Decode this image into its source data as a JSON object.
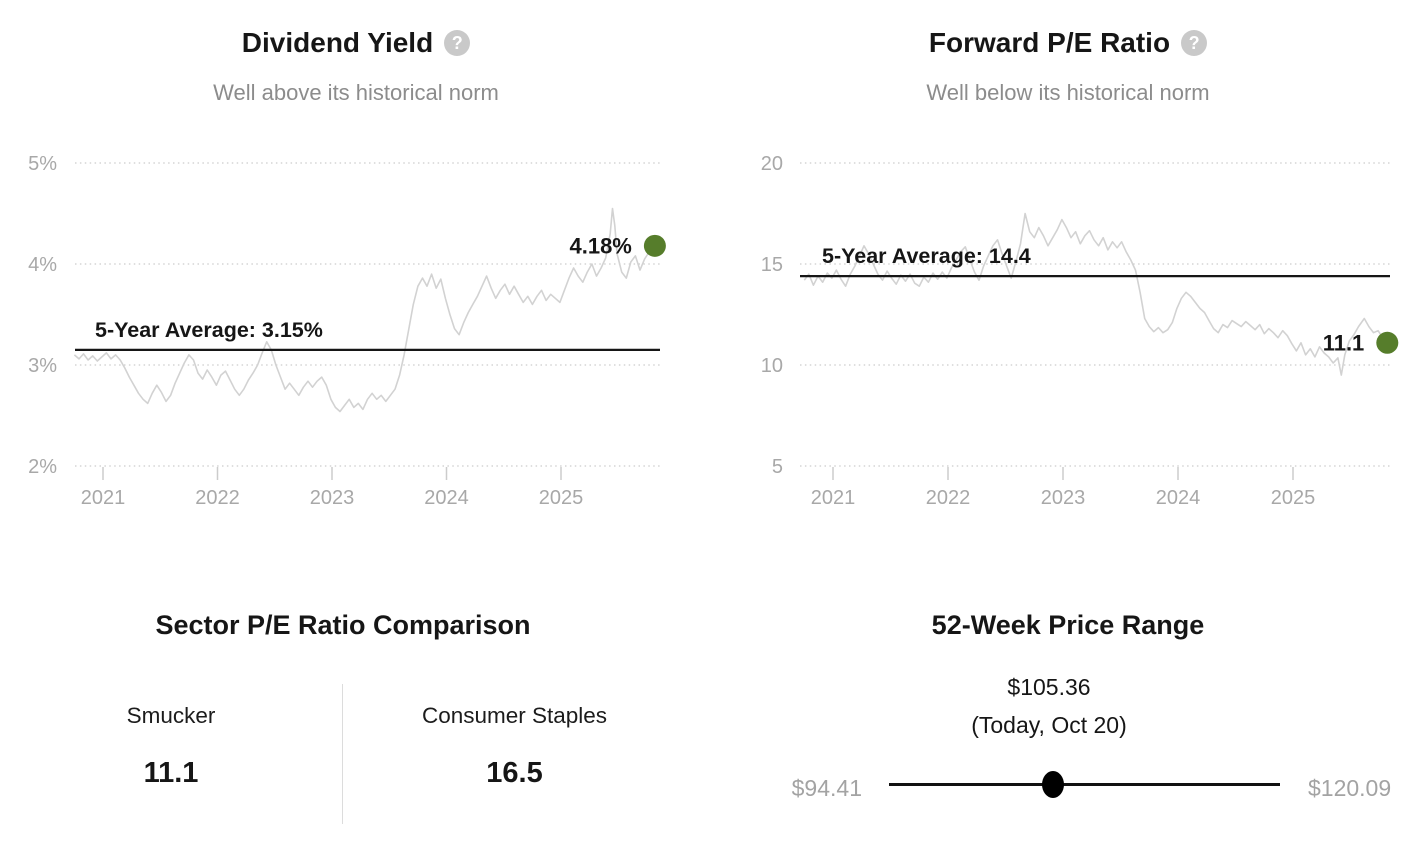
{
  "charts_meta": {
    "dividend": {
      "title": "Dividend Yield",
      "subtitle": "Well above its historical norm",
      "help_icon": "?"
    },
    "forward_pe": {
      "title": "Forward P/E Ratio",
      "subtitle": "Well below its historical norm",
      "help_icon": "?"
    }
  },
  "chart_data": [
    {
      "type": "line",
      "svg": "dividend-yield-chart",
      "title": "Dividend Yield",
      "subtitle": "Well above its historical norm",
      "grid": "dotted-horizontal",
      "ylim": [
        2,
        5
      ],
      "y_ticks": [
        {
          "label": "5%",
          "value": 5
        },
        {
          "label": "4%",
          "value": 4
        },
        {
          "label": "3%",
          "value": 3
        },
        {
          "label": "2%",
          "value": 2
        }
      ],
      "x_ticks": [
        2021,
        2022,
        2023,
        2024,
        2025
      ],
      "average": {
        "label": "5-Year Average: 3.15%",
        "value": 3.15
      },
      "end_label": "4.18%",
      "end_value": 4.18,
      "dot_color": "#567d2b",
      "line_color": "#d2d2d2",
      "series": [
        [
          2020.75,
          3.1
        ],
        [
          2020.79,
          3.06
        ],
        [
          2020.83,
          3.11
        ],
        [
          2020.87,
          3.05
        ],
        [
          2020.91,
          3.09
        ],
        [
          2020.95,
          3.04
        ],
        [
          2020.99,
          3.08
        ],
        [
          2021.03,
          3.12
        ],
        [
          2021.07,
          3.06
        ],
        [
          2021.11,
          3.1
        ],
        [
          2021.15,
          3.05
        ],
        [
          2021.19,
          2.97
        ],
        [
          2021.23,
          2.88
        ],
        [
          2021.27,
          2.8
        ],
        [
          2021.31,
          2.72
        ],
        [
          2021.35,
          2.66
        ],
        [
          2021.39,
          2.62
        ],
        [
          2021.43,
          2.72
        ],
        [
          2021.47,
          2.8
        ],
        [
          2021.51,
          2.73
        ],
        [
          2021.55,
          2.64
        ],
        [
          2021.59,
          2.7
        ],
        [
          2021.63,
          2.82
        ],
        [
          2021.67,
          2.92
        ],
        [
          2021.71,
          3.02
        ],
        [
          2021.75,
          3.1
        ],
        [
          2021.79,
          3.05
        ],
        [
          2021.83,
          2.92
        ],
        [
          2021.87,
          2.86
        ],
        [
          2021.91,
          2.95
        ],
        [
          2021.95,
          2.88
        ],
        [
          2021.99,
          2.8
        ],
        [
          2022.03,
          2.9
        ],
        [
          2022.07,
          2.94
        ],
        [
          2022.11,
          2.85
        ],
        [
          2022.15,
          2.76
        ],
        [
          2022.19,
          2.7
        ],
        [
          2022.23,
          2.76
        ],
        [
          2022.27,
          2.85
        ],
        [
          2022.31,
          2.92
        ],
        [
          2022.35,
          3.0
        ],
        [
          2022.39,
          3.12
        ],
        [
          2022.43,
          3.23
        ],
        [
          2022.47,
          3.15
        ],
        [
          2022.51,
          3.0
        ],
        [
          2022.55,
          2.88
        ],
        [
          2022.59,
          2.76
        ],
        [
          2022.63,
          2.82
        ],
        [
          2022.67,
          2.76
        ],
        [
          2022.71,
          2.7
        ],
        [
          2022.75,
          2.78
        ],
        [
          2022.79,
          2.84
        ],
        [
          2022.83,
          2.78
        ],
        [
          2022.87,
          2.84
        ],
        [
          2022.91,
          2.88
        ],
        [
          2022.95,
          2.8
        ],
        [
          2022.99,
          2.66
        ],
        [
          2023.03,
          2.58
        ],
        [
          2023.07,
          2.54
        ],
        [
          2023.11,
          2.6
        ],
        [
          2023.15,
          2.66
        ],
        [
          2023.19,
          2.58
        ],
        [
          2023.23,
          2.62
        ],
        [
          2023.27,
          2.56
        ],
        [
          2023.31,
          2.66
        ],
        [
          2023.35,
          2.72
        ],
        [
          2023.39,
          2.66
        ],
        [
          2023.43,
          2.7
        ],
        [
          2023.47,
          2.64
        ],
        [
          2023.51,
          2.7
        ],
        [
          2023.55,
          2.76
        ],
        [
          2023.59,
          2.9
        ],
        [
          2023.63,
          3.1
        ],
        [
          2023.67,
          3.35
        ],
        [
          2023.71,
          3.6
        ],
        [
          2023.75,
          3.78
        ],
        [
          2023.79,
          3.86
        ],
        [
          2023.83,
          3.78
        ],
        [
          2023.87,
          3.9
        ],
        [
          2023.91,
          3.76
        ],
        [
          2023.95,
          3.85
        ],
        [
          2023.99,
          3.66
        ],
        [
          2024.03,
          3.5
        ],
        [
          2024.07,
          3.36
        ],
        [
          2024.11,
          3.3
        ],
        [
          2024.15,
          3.42
        ],
        [
          2024.19,
          3.52
        ],
        [
          2024.23,
          3.6
        ],
        [
          2024.27,
          3.68
        ],
        [
          2024.31,
          3.78
        ],
        [
          2024.35,
          3.88
        ],
        [
          2024.39,
          3.76
        ],
        [
          2024.43,
          3.66
        ],
        [
          2024.47,
          3.74
        ],
        [
          2024.51,
          3.8
        ],
        [
          2024.55,
          3.7
        ],
        [
          2024.59,
          3.78
        ],
        [
          2024.63,
          3.7
        ],
        [
          2024.67,
          3.62
        ],
        [
          2024.71,
          3.68
        ],
        [
          2024.75,
          3.6
        ],
        [
          2024.79,
          3.68
        ],
        [
          2024.83,
          3.74
        ],
        [
          2024.87,
          3.64
        ],
        [
          2024.91,
          3.7
        ],
        [
          2024.95,
          3.66
        ],
        [
          2024.99,
          3.62
        ],
        [
          2025.03,
          3.74
        ],
        [
          2025.07,
          3.86
        ],
        [
          2025.11,
          3.96
        ],
        [
          2025.15,
          3.88
        ],
        [
          2025.19,
          3.82
        ],
        [
          2025.23,
          3.92
        ],
        [
          2025.27,
          4.0
        ],
        [
          2025.31,
          3.88
        ],
        [
          2025.35,
          3.96
        ],
        [
          2025.39,
          4.06
        ],
        [
          2025.43,
          4.3
        ],
        [
          2025.45,
          4.55
        ],
        [
          2025.47,
          4.38
        ],
        [
          2025.49,
          4.1
        ],
        [
          2025.53,
          3.92
        ],
        [
          2025.57,
          3.86
        ],
        [
          2025.61,
          4.02
        ],
        [
          2025.65,
          4.08
        ],
        [
          2025.69,
          3.94
        ],
        [
          2025.73,
          4.05
        ],
        [
          2025.77,
          4.12
        ],
        [
          2025.82,
          4.18
        ]
      ]
    },
    {
      "type": "line",
      "svg": "forward-pe-chart",
      "title": "Forward P/E Ratio",
      "subtitle": "Well below its historical norm",
      "grid": "dotted-horizontal",
      "ylim": [
        5,
        20
      ],
      "y_ticks": [
        {
          "label": "20",
          "value": 20
        },
        {
          "label": "15",
          "value": 15
        },
        {
          "label": "10",
          "value": 10
        },
        {
          "label": "5",
          "value": 5
        }
      ],
      "x_ticks": [
        2021,
        2022,
        2023,
        2024,
        2025
      ],
      "average": {
        "label": "5-Year Average: 14.4",
        "value": 14.4
      },
      "end_label": "11.1",
      "end_value": 11.1,
      "dot_color": "#567d2b",
      "line_color": "#d2d2d2",
      "series": [
        [
          2020.75,
          14.2
        ],
        [
          2020.79,
          14.5
        ],
        [
          2020.83,
          13.95
        ],
        [
          2020.87,
          14.4
        ],
        [
          2020.91,
          14.1
        ],
        [
          2020.95,
          14.55
        ],
        [
          2020.99,
          14.3
        ],
        [
          2021.03,
          14.7
        ],
        [
          2021.07,
          14.25
        ],
        [
          2021.11,
          13.9
        ],
        [
          2021.15,
          14.5
        ],
        [
          2021.19,
          14.9
        ],
        [
          2021.23,
          15.4
        ],
        [
          2021.27,
          15.9
        ],
        [
          2021.31,
          15.5
        ],
        [
          2021.35,
          15.0
        ],
        [
          2021.39,
          14.5
        ],
        [
          2021.43,
          14.2
        ],
        [
          2021.47,
          14.65
        ],
        [
          2021.51,
          14.3
        ],
        [
          2021.55,
          14.0
        ],
        [
          2021.59,
          14.45
        ],
        [
          2021.63,
          14.15
        ],
        [
          2021.67,
          14.5
        ],
        [
          2021.71,
          14.05
        ],
        [
          2021.75,
          13.9
        ],
        [
          2021.79,
          14.35
        ],
        [
          2021.83,
          14.1
        ],
        [
          2021.87,
          14.55
        ],
        [
          2021.91,
          14.25
        ],
        [
          2021.95,
          14.6
        ],
        [
          2021.99,
          14.3
        ],
        [
          2022.03,
          14.8
        ],
        [
          2022.07,
          15.2
        ],
        [
          2022.11,
          15.6
        ],
        [
          2022.15,
          15.85
        ],
        [
          2022.19,
          15.2
        ],
        [
          2022.23,
          14.6
        ],
        [
          2022.27,
          14.2
        ],
        [
          2022.31,
          14.9
        ],
        [
          2022.35,
          15.4
        ],
        [
          2022.39,
          15.9
        ],
        [
          2022.43,
          16.2
        ],
        [
          2022.47,
          15.5
        ],
        [
          2022.51,
          14.9
        ],
        [
          2022.55,
          14.3
        ],
        [
          2022.59,
          15.1
        ],
        [
          2022.63,
          16.0
        ],
        [
          2022.67,
          17.5
        ],
        [
          2022.71,
          16.6
        ],
        [
          2022.75,
          16.3
        ],
        [
          2022.79,
          16.8
        ],
        [
          2022.83,
          16.4
        ],
        [
          2022.87,
          15.9
        ],
        [
          2022.91,
          16.3
        ],
        [
          2022.95,
          16.7
        ],
        [
          2022.99,
          17.2
        ],
        [
          2023.03,
          16.8
        ],
        [
          2023.07,
          16.3
        ],
        [
          2023.11,
          16.6
        ],
        [
          2023.15,
          16.0
        ],
        [
          2023.19,
          16.4
        ],
        [
          2023.23,
          16.65
        ],
        [
          2023.27,
          16.2
        ],
        [
          2023.31,
          15.9
        ],
        [
          2023.35,
          16.3
        ],
        [
          2023.39,
          15.7
        ],
        [
          2023.43,
          16.1
        ],
        [
          2023.47,
          15.8
        ],
        [
          2023.51,
          16.1
        ],
        [
          2023.55,
          15.6
        ],
        [
          2023.59,
          15.2
        ],
        [
          2023.63,
          14.7
        ],
        [
          2023.67,
          13.6
        ],
        [
          2023.71,
          12.3
        ],
        [
          2023.75,
          11.9
        ],
        [
          2023.79,
          11.65
        ],
        [
          2023.83,
          11.85
        ],
        [
          2023.87,
          11.6
        ],
        [
          2023.91,
          11.75
        ],
        [
          2023.95,
          12.1
        ],
        [
          2023.99,
          12.8
        ],
        [
          2024.03,
          13.3
        ],
        [
          2024.07,
          13.6
        ],
        [
          2024.11,
          13.4
        ],
        [
          2024.15,
          13.1
        ],
        [
          2024.19,
          12.8
        ],
        [
          2024.23,
          12.6
        ],
        [
          2024.27,
          12.2
        ],
        [
          2024.31,
          11.8
        ],
        [
          2024.35,
          11.6
        ],
        [
          2024.39,
          12.0
        ],
        [
          2024.43,
          11.85
        ],
        [
          2024.47,
          12.2
        ],
        [
          2024.51,
          12.05
        ],
        [
          2024.55,
          11.9
        ],
        [
          2024.59,
          12.15
        ],
        [
          2024.63,
          11.95
        ],
        [
          2024.67,
          11.75
        ],
        [
          2024.71,
          12.0
        ],
        [
          2024.75,
          11.55
        ],
        [
          2024.79,
          11.8
        ],
        [
          2024.83,
          11.6
        ],
        [
          2024.87,
          11.35
        ],
        [
          2024.91,
          11.7
        ],
        [
          2024.95,
          11.45
        ],
        [
          2024.99,
          11.05
        ],
        [
          2025.03,
          10.7
        ],
        [
          2025.07,
          11.1
        ],
        [
          2025.11,
          10.5
        ],
        [
          2025.15,
          10.8
        ],
        [
          2025.19,
          10.4
        ],
        [
          2025.23,
          10.9
        ],
        [
          2025.27,
          10.6
        ],
        [
          2025.31,
          10.4
        ],
        [
          2025.35,
          10.1
        ],
        [
          2025.39,
          10.35
        ],
        [
          2025.42,
          9.5
        ],
        [
          2025.45,
          10.5
        ],
        [
          2025.49,
          11.2
        ],
        [
          2025.53,
          11.5
        ],
        [
          2025.57,
          11.9
        ],
        [
          2025.62,
          12.3
        ],
        [
          2025.66,
          11.9
        ],
        [
          2025.7,
          11.6
        ],
        [
          2025.74,
          11.7
        ],
        [
          2025.78,
          11.35
        ],
        [
          2025.82,
          11.1
        ]
      ]
    }
  ],
  "sector_comparison": {
    "title": "Sector P/E Ratio Comparison",
    "items": [
      {
        "label": "Smucker",
        "value": "11.1"
      },
      {
        "label": "Consumer Staples",
        "value": "16.5"
      }
    ]
  },
  "price_range": {
    "title": "52-Week Price Range",
    "current_price": "$105.36",
    "current_label": "(Today, Oct 20)",
    "low": "$94.41",
    "high": "$120.09",
    "position_pct": 42
  }
}
